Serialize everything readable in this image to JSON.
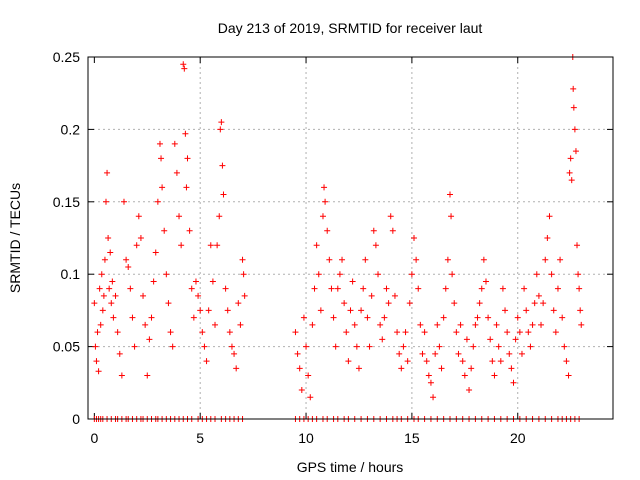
{
  "chart_data": {
    "type": "scatter",
    "title": "Day 213 of 2019, SRMTID for receiver laut",
    "xlabel": "GPS time / hours",
    "ylabel": "SRMTID / TECUs",
    "xlim": [
      -0.3,
      24.5
    ],
    "ylim": [
      0,
      0.25
    ],
    "grid": true,
    "marker": "+",
    "x_ticks": [
      0,
      5,
      10,
      15,
      20
    ],
    "x_tick_labels": [
      "0",
      "5",
      "10",
      "15",
      "20"
    ],
    "y_ticks": [
      0,
      0.05,
      0.1,
      0.15,
      0.2,
      0.25
    ],
    "y_tick_labels": [
      "0",
      "0.05",
      "0.1",
      "0.15",
      "0.2",
      "0.25"
    ],
    "series": [
      {
        "name": "SRMTID",
        "color": "#ff0000",
        "points": [
          [
            0.0,
            0.08
          ],
          [
            0.05,
            0.05
          ],
          [
            0.1,
            0.04
          ],
          [
            0.15,
            0.06
          ],
          [
            0.2,
            0.033
          ],
          [
            0.25,
            0.09
          ],
          [
            0.3,
            0.065
          ],
          [
            0.35,
            0.1
          ],
          [
            0.4,
            0.075
          ],
          [
            0.45,
            0.085
          ],
          [
            0.5,
            0.11
          ],
          [
            0.55,
            0.15
          ],
          [
            0.6,
            0.17
          ],
          [
            0.65,
            0.125
          ],
          [
            0.7,
            0.09
          ],
          [
            0.75,
            0.115
          ],
          [
            0.8,
            0.08
          ],
          [
            0.85,
            0.095
          ],
          [
            0.9,
            0.07
          ],
          [
            1.0,
            0.085
          ],
          [
            1.1,
            0.06
          ],
          [
            1.2,
            0.045
          ],
          [
            1.3,
            0.03
          ],
          [
            1.4,
            0.15
          ],
          [
            1.5,
            0.11
          ],
          [
            1.6,
            0.105
          ],
          [
            1.7,
            0.09
          ],
          [
            1.8,
            0.07
          ],
          [
            1.9,
            0.05
          ],
          [
            2.0,
            0.12
          ],
          [
            2.1,
            0.14
          ],
          [
            2.2,
            0.125
          ],
          [
            2.3,
            0.085
          ],
          [
            2.4,
            0.065
          ],
          [
            2.5,
            0.03
          ],
          [
            2.6,
            0.055
          ],
          [
            2.7,
            0.07
          ],
          [
            2.8,
            0.095
          ],
          [
            2.9,
            0.115
          ],
          [
            3.0,
            0.15
          ],
          [
            3.1,
            0.19
          ],
          [
            3.15,
            0.18
          ],
          [
            3.2,
            0.16
          ],
          [
            3.3,
            0.13
          ],
          [
            3.4,
            0.1
          ],
          [
            3.5,
            0.08
          ],
          [
            3.6,
            0.06
          ],
          [
            3.7,
            0.05
          ],
          [
            3.8,
            0.19
          ],
          [
            3.9,
            0.17
          ],
          [
            4.0,
            0.14
          ],
          [
            4.1,
            0.12
          ],
          [
            4.2,
            0.245
          ],
          [
            4.25,
            0.242
          ],
          [
            4.3,
            0.197
          ],
          [
            4.35,
            0.16
          ],
          [
            4.4,
            0.18
          ],
          [
            4.5,
            0.13
          ],
          [
            4.6,
            0.09
          ],
          [
            4.7,
            0.07
          ],
          [
            4.8,
            0.095
          ],
          [
            4.9,
            0.085
          ],
          [
            5.0,
            0.075
          ],
          [
            5.1,
            0.06
          ],
          [
            5.2,
            0.05
          ],
          [
            5.3,
            0.04
          ],
          [
            5.4,
            0.075
          ],
          [
            5.5,
            0.12
          ],
          [
            5.6,
            0.095
          ],
          [
            5.7,
            0.065
          ],
          [
            5.8,
            0.12
          ],
          [
            5.9,
            0.14
          ],
          [
            5.95,
            0.2
          ],
          [
            6.0,
            0.205
          ],
          [
            6.05,
            0.175
          ],
          [
            6.1,
            0.155
          ],
          [
            6.2,
            0.09
          ],
          [
            6.3,
            0.075
          ],
          [
            6.4,
            0.06
          ],
          [
            6.5,
            0.05
          ],
          [
            6.6,
            0.045
          ],
          [
            6.7,
            0.035
          ],
          [
            6.8,
            0.08
          ],
          [
            6.9,
            0.065
          ],
          [
            7.0,
            0.11
          ],
          [
            7.05,
            0.1
          ],
          [
            7.1,
            0.085
          ],
          [
            9.5,
            0.06
          ],
          [
            9.6,
            0.045
          ],
          [
            9.7,
            0.035
          ],
          [
            9.8,
            0.02
          ],
          [
            9.9,
            0.07
          ],
          [
            10.0,
            0.05
          ],
          [
            10.1,
            0.03
          ],
          [
            10.2,
            0.015
          ],
          [
            10.3,
            0.065
          ],
          [
            10.4,
            0.09
          ],
          [
            10.5,
            0.12
          ],
          [
            10.6,
            0.1
          ],
          [
            10.7,
            0.075
          ],
          [
            10.8,
            0.14
          ],
          [
            10.85,
            0.16
          ],
          [
            10.9,
            0.15
          ],
          [
            11.0,
            0.13
          ],
          [
            11.1,
            0.11
          ],
          [
            11.2,
            0.09
          ],
          [
            11.3,
            0.07
          ],
          [
            11.4,
            0.05
          ],
          [
            11.5,
            0.09
          ],
          [
            11.6,
            0.1
          ],
          [
            11.7,
            0.11
          ],
          [
            11.8,
            0.08
          ],
          [
            11.9,
            0.06
          ],
          [
            12.0,
            0.04
          ],
          [
            12.1,
            0.075
          ],
          [
            12.2,
            0.095
          ],
          [
            12.3,
            0.065
          ],
          [
            12.4,
            0.05
          ],
          [
            12.5,
            0.035
          ],
          [
            12.6,
            0.075
          ],
          [
            12.7,
            0.09
          ],
          [
            12.8,
            0.11
          ],
          [
            12.9,
            0.07
          ],
          [
            13.0,
            0.05
          ],
          [
            13.1,
            0.085
          ],
          [
            13.2,
            0.13
          ],
          [
            13.3,
            0.12
          ],
          [
            13.4,
            0.1
          ],
          [
            13.5,
            0.065
          ],
          [
            13.6,
            0.055
          ],
          [
            13.7,
            0.07
          ],
          [
            13.8,
            0.09
          ],
          [
            13.9,
            0.08
          ],
          [
            14.0,
            0.14
          ],
          [
            14.1,
            0.13
          ],
          [
            14.2,
            0.085
          ],
          [
            14.3,
            0.06
          ],
          [
            14.4,
            0.045
          ],
          [
            14.5,
            0.035
          ],
          [
            14.6,
            0.05
          ],
          [
            14.7,
            0.06
          ],
          [
            14.8,
            0.04
          ],
          [
            14.9,
            0.08
          ],
          [
            15.0,
            0.1
          ],
          [
            15.1,
            0.125
          ],
          [
            15.2,
            0.11
          ],
          [
            15.3,
            0.09
          ],
          [
            15.4,
            0.065
          ],
          [
            15.5,
            0.045
          ],
          [
            15.6,
            0.06
          ],
          [
            15.7,
            0.04
          ],
          [
            15.8,
            0.03
          ],
          [
            15.9,
            0.025
          ],
          [
            16.0,
            0.015
          ],
          [
            16.1,
            0.045
          ],
          [
            16.2,
            0.065
          ],
          [
            16.3,
            0.05
          ],
          [
            16.4,
            0.035
          ],
          [
            16.5,
            0.07
          ],
          [
            16.6,
            0.09
          ],
          [
            16.7,
            0.11
          ],
          [
            16.8,
            0.155
          ],
          [
            16.85,
            0.14
          ],
          [
            16.9,
            0.1
          ],
          [
            17.0,
            0.08
          ],
          [
            17.1,
            0.06
          ],
          [
            17.2,
            0.045
          ],
          [
            17.3,
            0.065
          ],
          [
            17.4,
            0.04
          ],
          [
            17.5,
            0.03
          ],
          [
            17.6,
            0.055
          ],
          [
            17.7,
            0.02
          ],
          [
            17.8,
            0.035
          ],
          [
            17.9,
            0.05
          ],
          [
            18.0,
            0.065
          ],
          [
            18.1,
            0.07
          ],
          [
            18.2,
            0.08
          ],
          [
            18.3,
            0.09
          ],
          [
            18.4,
            0.11
          ],
          [
            18.5,
            0.095
          ],
          [
            18.6,
            0.07
          ],
          [
            18.7,
            0.055
          ],
          [
            18.8,
            0.04
          ],
          [
            18.9,
            0.03
          ],
          [
            19.0,
            0.065
          ],
          [
            19.1,
            0.05
          ],
          [
            19.2,
            0.04
          ],
          [
            19.3,
            0.09
          ],
          [
            19.4,
            0.075
          ],
          [
            19.5,
            0.06
          ],
          [
            19.6,
            0.045
          ],
          [
            19.7,
            0.035
          ],
          [
            19.8,
            0.025
          ],
          [
            19.9,
            0.055
          ],
          [
            20.0,
            0.07
          ],
          [
            20.1,
            0.06
          ],
          [
            20.2,
            0.045
          ],
          [
            20.3,
            0.09
          ],
          [
            20.4,
            0.075
          ],
          [
            20.5,
            0.06
          ],
          [
            20.6,
            0.05
          ],
          [
            20.7,
            0.065
          ],
          [
            20.8,
            0.08
          ],
          [
            20.9,
            0.1
          ],
          [
            21.0,
            0.085
          ],
          [
            21.1,
            0.065
          ],
          [
            21.2,
            0.08
          ],
          [
            21.3,
            0.11
          ],
          [
            21.4,
            0.125
          ],
          [
            21.5,
            0.14
          ],
          [
            21.6,
            0.1
          ],
          [
            21.7,
            0.075
          ],
          [
            21.8,
            0.06
          ],
          [
            21.9,
            0.09
          ],
          [
            22.0,
            0.11
          ],
          [
            22.1,
            0.07
          ],
          [
            22.2,
            0.05
          ],
          [
            22.3,
            0.04
          ],
          [
            22.4,
            0.03
          ],
          [
            22.45,
            0.17
          ],
          [
            22.5,
            0.18
          ],
          [
            22.55,
            0.165
          ],
          [
            22.6,
            0.25
          ],
          [
            22.62,
            0.228
          ],
          [
            22.65,
            0.215
          ],
          [
            22.7,
            0.2
          ],
          [
            22.75,
            0.185
          ],
          [
            22.8,
            0.12
          ],
          [
            22.85,
            0.1
          ],
          [
            22.9,
            0.09
          ],
          [
            22.95,
            0.075
          ],
          [
            23.0,
            0.065
          ]
        ],
        "zero_points_x": [
          0.0,
          0.1,
          0.2,
          0.3,
          0.4,
          0.6,
          0.8,
          1.0,
          1.1,
          1.3,
          1.5,
          1.6,
          1.8,
          2.0,
          2.2,
          2.3,
          2.5,
          2.7,
          2.9,
          3.0,
          3.2,
          3.4,
          3.6,
          3.8,
          4.0,
          4.2,
          4.4,
          4.6,
          4.9,
          5.1,
          5.3,
          5.5,
          5.7,
          6.0,
          6.2,
          6.4,
          6.6,
          6.8,
          7.0,
          9.5,
          9.7,
          9.9,
          10.1,
          10.3,
          10.5,
          10.8,
          11.0,
          11.3,
          11.5,
          11.8,
          12.0,
          12.3,
          12.6,
          12.9,
          13.2,
          13.5,
          13.8,
          14.1,
          14.3,
          14.5,
          14.8,
          15.1,
          15.3,
          15.6,
          15.9,
          16.2,
          16.5,
          16.8,
          17.1,
          17.4,
          17.7,
          18.0,
          18.3,
          18.6,
          18.9,
          19.2,
          19.5,
          19.8,
          20.1,
          20.4,
          20.7,
          21.0,
          21.3,
          21.6,
          21.9,
          22.1,
          22.3,
          22.5,
          22.7,
          22.9
        ]
      }
    ]
  }
}
